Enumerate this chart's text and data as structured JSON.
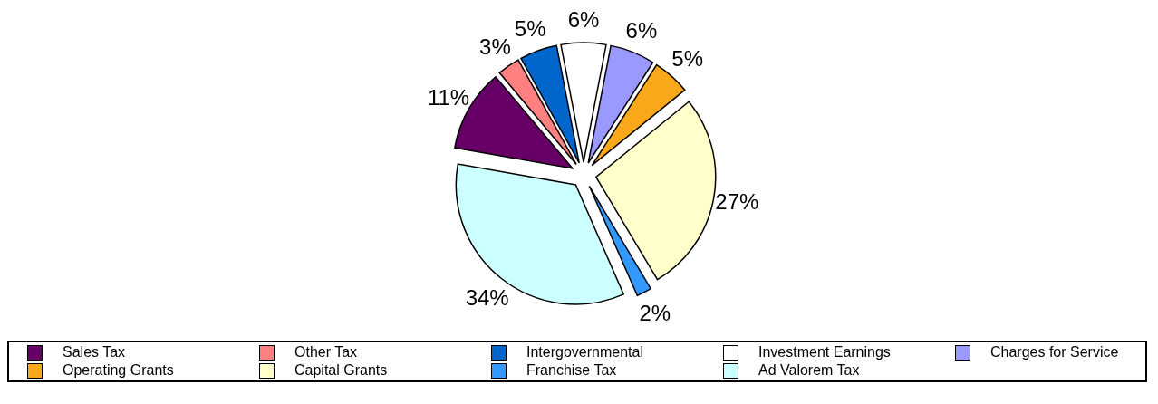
{
  "chart_data": {
    "type": "pie",
    "categories": [
      "Sales Tax",
      "Other Tax",
      "Intergovernmental",
      "Investment Earnings",
      "Charges for Service",
      "Operating Grants",
      "Capital Grants",
      "Franchise Tax",
      "Ad Valorem Tax"
    ],
    "values": [
      11,
      3,
      5,
      6,
      6,
      5,
      27,
      2,
      34
    ],
    "value_labels": [
      "11%",
      "3%",
      "5%",
      "6%",
      "6%",
      "5%",
      "27%",
      "2%",
      "34%"
    ],
    "colors": [
      "#660066",
      "#ff8080",
      "#0066cc",
      "#ffffff",
      "#9999ff",
      "#f9a81a",
      "#ffffcc",
      "#3399ff",
      "#ccffff"
    ],
    "legend": "bottom"
  }
}
